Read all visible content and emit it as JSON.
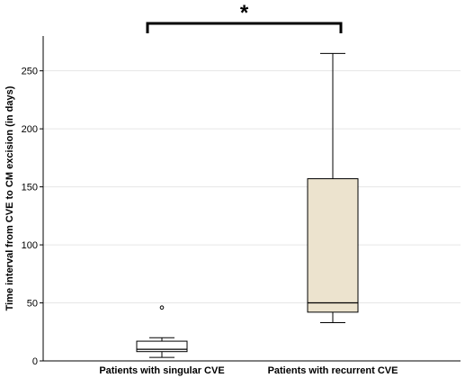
{
  "chart_data": {
    "type": "boxplot",
    "ylabel": "Time interval from CVE to CM excision (in days)",
    "ylim": [
      0,
      280
    ],
    "yticks": [
      0,
      50,
      100,
      150,
      200,
      250
    ],
    "grid": "horizontal",
    "categories": [
      "Patients with singular CVE",
      "Patients with recurrent CVE"
    ],
    "boxes": [
      {
        "name": "Patients with singular CVE",
        "whisker_low": 3,
        "q1": 8,
        "median": 10,
        "q3": 17,
        "whisker_high": 20,
        "outliers": [
          46
        ],
        "fill": "#ffffff"
      },
      {
        "name": "Patients with recurrent CVE",
        "whisker_low": 33,
        "q1": 42,
        "median": 50,
        "q3": 157,
        "whisker_high": 265,
        "outliers": [],
        "fill": "#ece3ce"
      }
    ],
    "significance": {
      "label": "*",
      "between": [
        0,
        1
      ]
    }
  }
}
